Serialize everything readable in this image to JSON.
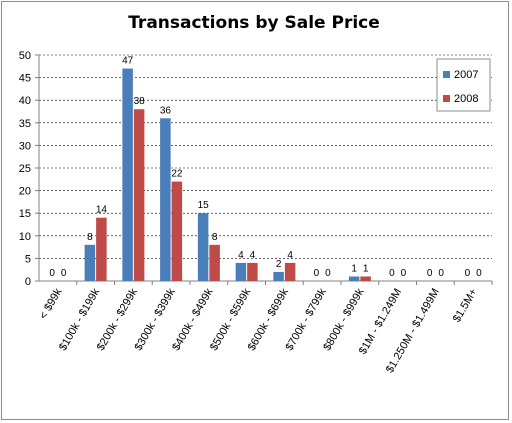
{
  "chart_data": {
    "type": "bar",
    "title": "Transactions by Sale Price",
    "xlabel": "",
    "ylabel": "",
    "ylim": [
      0,
      50
    ],
    "yticks": [
      0,
      5,
      10,
      15,
      20,
      25,
      30,
      35,
      40,
      45,
      50
    ],
    "grid": true,
    "legend_position": "right",
    "categories": [
      "< $99k",
      "$100k - $199k",
      "$200k - $299k",
      "$300k - $399k",
      "$400k - $499k",
      "$500k - $599k",
      "$600k - $699k",
      "$700k - $799k",
      "$800k - $999k",
      "$1M - $1.249M",
      "$1.250M - $1.499M",
      "$1.5M+"
    ],
    "series": [
      {
        "name": "2007",
        "color": "#4a7ebb",
        "values": [
          0,
          8,
          47,
          36,
          15,
          4,
          2,
          0,
          1,
          0,
          0,
          0
        ]
      },
      {
        "name": "2008",
        "color": "#be4b48",
        "values": [
          0,
          14,
          38,
          22,
          8,
          4,
          4,
          0,
          1,
          0,
          0,
          0
        ]
      }
    ]
  }
}
